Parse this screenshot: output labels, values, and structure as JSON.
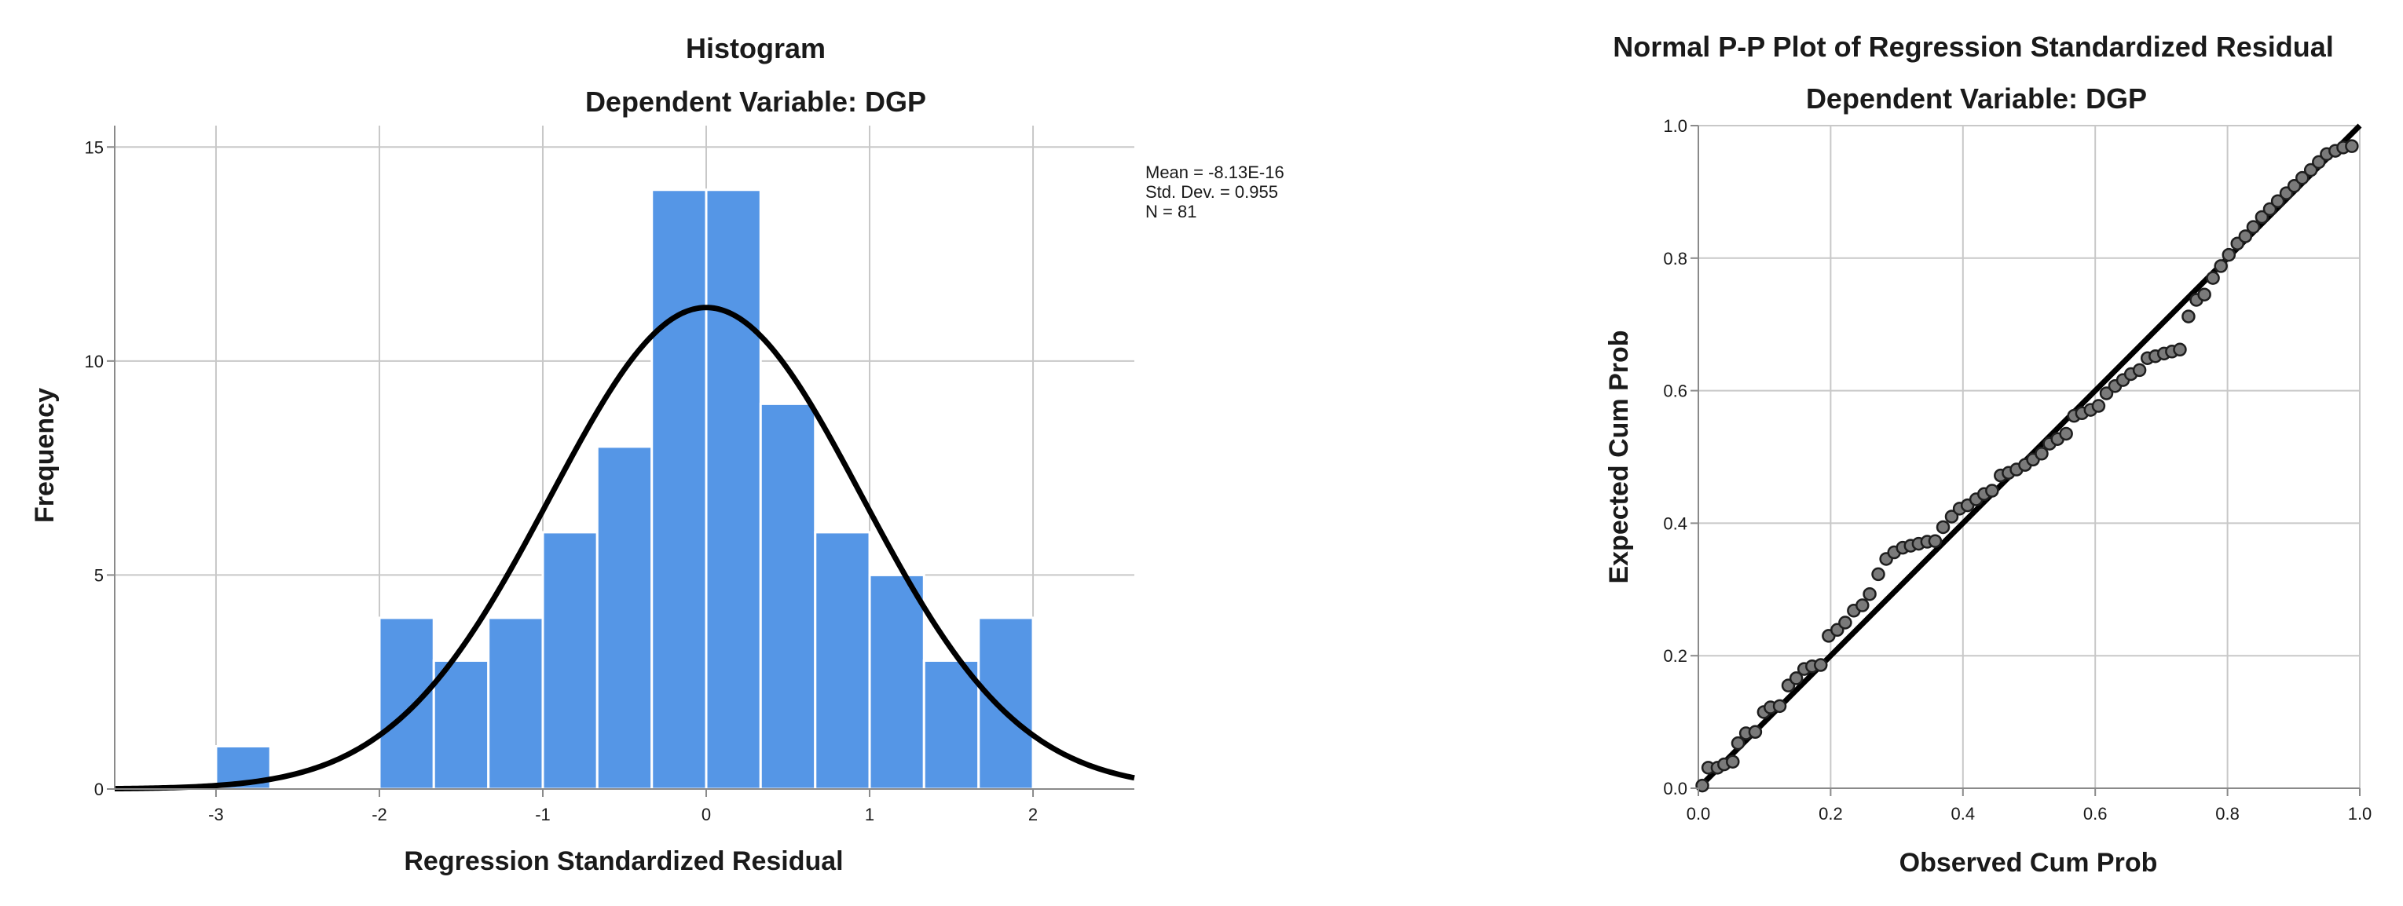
{
  "chart_data": [
    {
      "type": "histogram",
      "title": "Histogram",
      "subtitle": "Dependent Variable: DGP",
      "xlabel": "Regression Standardized Residual",
      "ylabel": "Frequency",
      "xlim": [
        -3.62,
        2.62
      ],
      "ylim": [
        0,
        15.5
      ],
      "x_ticks": [
        -3,
        -2,
        -1,
        0,
        1,
        2
      ],
      "y_ticks": [
        0,
        5,
        10,
        15
      ],
      "grid": true,
      "bin_width": 0.333,
      "bins": [
        {
          "start": -3.0,
          "end": -2.667,
          "count": 1
        },
        {
          "start": -2.0,
          "end": -1.667,
          "count": 4
        },
        {
          "start": -1.667,
          "end": -1.333,
          "count": 3
        },
        {
          "start": -1.333,
          "end": -1.0,
          "count": 4
        },
        {
          "start": -1.0,
          "end": -0.667,
          "count": 6
        },
        {
          "start": -0.667,
          "end": -0.333,
          "count": 8
        },
        {
          "start": -0.333,
          "end": 0.0,
          "count": 14
        },
        {
          "start": 0.0,
          "end": 0.333,
          "count": 14
        },
        {
          "start": 0.333,
          "end": 0.667,
          "count": 9
        },
        {
          "start": 0.667,
          "end": 1.0,
          "count": 6
        },
        {
          "start": 1.0,
          "end": 1.333,
          "count": 5
        },
        {
          "start": 1.333,
          "end": 1.667,
          "count": 3
        },
        {
          "start": 1.667,
          "end": 2.0,
          "count": 4
        }
      ],
      "normal_curve": {
        "mean": 0,
        "sd": 0.955,
        "peak": 11.25
      },
      "stats": {
        "mean_label": "Mean = -8.13E-16",
        "sd_label": "Std. Dev. = 0.955",
        "n_label": "N = 81"
      },
      "bar_color": "#5596e6",
      "curve_color": "#000000"
    },
    {
      "type": "scatter",
      "title": "Normal P-P Plot of Regression Standardized Residual",
      "subtitle": "Dependent Variable: DGP",
      "xlabel": "Observed Cum Prob",
      "ylabel": "Expected Cum Prob",
      "xlim": [
        0,
        1
      ],
      "ylim": [
        0,
        1
      ],
      "x_ticks": [
        0.0,
        0.2,
        0.4,
        0.6,
        0.8,
        1.0
      ],
      "y_ticks": [
        0.0,
        0.2,
        0.4,
        0.6,
        0.8,
        1.0
      ],
      "tick_format": 1,
      "grid": true,
      "reference_line": [
        [
          0,
          0
        ],
        [
          1,
          1
        ]
      ],
      "point_color": "#7a7a7a",
      "points": [
        [
          0.006,
          0.004
        ],
        [
          0.015,
          0.031
        ],
        [
          0.029,
          0.031
        ],
        [
          0.039,
          0.036
        ],
        [
          0.052,
          0.04
        ],
        [
          0.06,
          0.068
        ],
        [
          0.072,
          0.083
        ],
        [
          0.086,
          0.085
        ],
        [
          0.099,
          0.115
        ],
        [
          0.109,
          0.122
        ],
        [
          0.123,
          0.124
        ],
        [
          0.136,
          0.155
        ],
        [
          0.148,
          0.166
        ],
        [
          0.16,
          0.18
        ],
        [
          0.172,
          0.184
        ],
        [
          0.185,
          0.186
        ],
        [
          0.197,
          0.23
        ],
        [
          0.21,
          0.239
        ],
        [
          0.222,
          0.25
        ],
        [
          0.235,
          0.268
        ],
        [
          0.248,
          0.276
        ],
        [
          0.259,
          0.293
        ],
        [
          0.272,
          0.323
        ],
        [
          0.284,
          0.346
        ],
        [
          0.296,
          0.356
        ],
        [
          0.309,
          0.363
        ],
        [
          0.321,
          0.366
        ],
        [
          0.333,
          0.369
        ],
        [
          0.346,
          0.372
        ],
        [
          0.358,
          0.373
        ],
        [
          0.37,
          0.394
        ],
        [
          0.383,
          0.41
        ],
        [
          0.395,
          0.422
        ],
        [
          0.407,
          0.427
        ],
        [
          0.42,
          0.436
        ],
        [
          0.432,
          0.444
        ],
        [
          0.444,
          0.449
        ],
        [
          0.457,
          0.472
        ],
        [
          0.469,
          0.476
        ],
        [
          0.481,
          0.481
        ],
        [
          0.494,
          0.488
        ],
        [
          0.506,
          0.496
        ],
        [
          0.519,
          0.505
        ],
        [
          0.531,
          0.52
        ],
        [
          0.543,
          0.527
        ],
        [
          0.556,
          0.535
        ],
        [
          0.568,
          0.562
        ],
        [
          0.58,
          0.566
        ],
        [
          0.593,
          0.571
        ],
        [
          0.605,
          0.577
        ],
        [
          0.617,
          0.596
        ],
        [
          0.63,
          0.607
        ],
        [
          0.642,
          0.616
        ],
        [
          0.654,
          0.625
        ],
        [
          0.667,
          0.631
        ],
        [
          0.679,
          0.649
        ],
        [
          0.691,
          0.652
        ],
        [
          0.704,
          0.656
        ],
        [
          0.716,
          0.659
        ],
        [
          0.728,
          0.662
        ],
        [
          0.741,
          0.712
        ],
        [
          0.753,
          0.737
        ],
        [
          0.765,
          0.745
        ],
        [
          0.778,
          0.77
        ],
        [
          0.79,
          0.788
        ],
        [
          0.802,
          0.805
        ],
        [
          0.815,
          0.822
        ],
        [
          0.827,
          0.833
        ],
        [
          0.839,
          0.847
        ],
        [
          0.852,
          0.862
        ],
        [
          0.864,
          0.874
        ],
        [
          0.876,
          0.886
        ],
        [
          0.889,
          0.898
        ],
        [
          0.901,
          0.909
        ],
        [
          0.913,
          0.921
        ],
        [
          0.926,
          0.933
        ],
        [
          0.938,
          0.945
        ],
        [
          0.95,
          0.957
        ],
        [
          0.963,
          0.962
        ],
        [
          0.975,
          0.967
        ],
        [
          0.988,
          0.969
        ]
      ]
    }
  ]
}
